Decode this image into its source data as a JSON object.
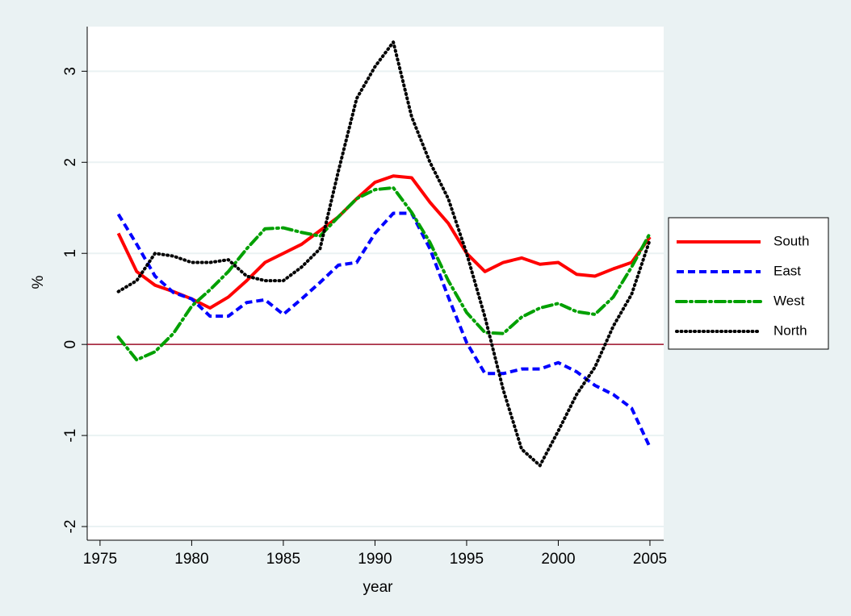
{
  "chart_data": {
    "type": "line",
    "xlabel": "year",
    "ylabel": "%",
    "x": [
      1976,
      1977,
      1978,
      1979,
      1980,
      1981,
      1982,
      1983,
      1984,
      1985,
      1986,
      1987,
      1988,
      1989,
      1990,
      1991,
      1992,
      1993,
      1994,
      1995,
      1996,
      1997,
      1998,
      1999,
      2000,
      2001,
      2002,
      2003,
      2004,
      2005
    ],
    "series": [
      {
        "name": "South",
        "color": "#ff0000",
        "style": "solid",
        "values": [
          1.22,
          0.8,
          0.65,
          0.58,
          0.5,
          0.4,
          0.52,
          0.7,
          0.9,
          1.0,
          1.1,
          1.25,
          1.4,
          1.6,
          1.78,
          1.85,
          1.83,
          1.56,
          1.33,
          1.0,
          0.8,
          0.9,
          0.95,
          0.88,
          0.9,
          0.77,
          0.75,
          0.83,
          0.9,
          1.18
        ]
      },
      {
        "name": "East",
        "color": "#0000ff",
        "style": "dash",
        "values": [
          1.43,
          1.1,
          0.75,
          0.57,
          0.5,
          0.31,
          0.31,
          0.46,
          0.49,
          0.33,
          0.5,
          0.68,
          0.87,
          0.9,
          1.22,
          1.44,
          1.44,
          1.05,
          0.52,
          0.02,
          -0.32,
          -0.32,
          -0.27,
          -0.27,
          -0.2,
          -0.3,
          -0.45,
          -0.55,
          -0.7,
          -1.13
        ]
      },
      {
        "name": "West",
        "color": "#00a000",
        "style": "dashdot",
        "values": [
          0.08,
          -0.17,
          -0.08,
          0.12,
          0.42,
          0.6,
          0.8,
          1.05,
          1.27,
          1.28,
          1.23,
          1.19,
          1.4,
          1.6,
          1.7,
          1.72,
          1.45,
          1.12,
          0.7,
          0.35,
          0.13,
          0.12,
          0.3,
          0.4,
          0.45,
          0.36,
          0.33,
          0.52,
          0.85,
          1.22
        ]
      },
      {
        "name": "North",
        "color": "#000000",
        "style": "dot",
        "values": [
          0.58,
          0.7,
          1.0,
          0.97,
          0.9,
          0.9,
          0.93,
          0.75,
          0.7,
          0.7,
          0.85,
          1.05,
          1.9,
          2.7,
          3.05,
          3.32,
          2.5,
          2.0,
          1.6,
          1.0,
          0.3,
          -0.5,
          -1.15,
          -1.33,
          -0.95,
          -0.55,
          -0.25,
          0.2,
          0.55,
          1.15
        ]
      }
    ],
    "xlim": [
      1974.3,
      2005.75
    ],
    "xticks": [
      1975,
      1980,
      1985,
      1990,
      1995,
      2000,
      2005
    ],
    "ylim": [
      -2.15,
      3.49
    ],
    "yticks": [
      -2,
      -1,
      0,
      1,
      2,
      3
    ],
    "grid": true,
    "yline": 0,
    "yline_color": "#a0102a",
    "legend": "right"
  }
}
